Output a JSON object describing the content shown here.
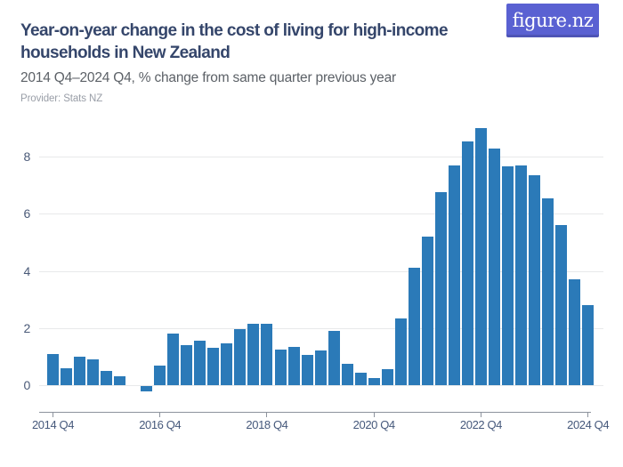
{
  "header": {
    "title_lines": [
      "Year-on-year change in the cost of living for high-income",
      "households in New Zealand"
    ],
    "subtitle": "2014 Q4–2024 Q4, % change from same quarter previous year",
    "provider": "Provider: Stats NZ",
    "logo_text": "figure.nz"
  },
  "colors": {
    "bar": "#2b7ab8",
    "title": "#35466b",
    "subtitle": "#5c6167",
    "provider": "#999ea7",
    "axis_labels": "#45587b",
    "gridline": "#e8e9ea",
    "axis_line": "#8d939d",
    "logo_background": "#5a61d2",
    "background": "#ffffff"
  },
  "chart_data": {
    "type": "bar",
    "title": "Year-on-year change in the cost of living for high-income households in New Zealand",
    "subtitle": "2014 Q4–2024 Q4, % change from same quarter previous year",
    "provider": "Provider: Stats NZ",
    "ylabel": "% change from same quarter previous year",
    "xlabel": "",
    "legend": false,
    "grid": true,
    "ylim": [
      -0.95,
      9.15
    ],
    "y_ticks": [
      0,
      2,
      4,
      6,
      8
    ],
    "x_tick_labels": [
      "2014 Q4",
      "2016 Q4",
      "2018 Q4",
      "2020 Q4",
      "2022 Q4",
      "2024 Q4"
    ],
    "x_tick_indices": [
      0,
      8,
      16,
      24,
      32,
      40
    ],
    "categories": [
      "2014 Q4",
      "2015 Q1",
      "2015 Q2",
      "2015 Q3",
      "2015 Q4",
      "2016 Q1",
      "2016 Q2",
      "2016 Q3",
      "2016 Q4",
      "2017 Q1",
      "2017 Q2",
      "2017 Q3",
      "2017 Q4",
      "2018 Q1",
      "2018 Q2",
      "2018 Q3",
      "2018 Q4",
      "2019 Q1",
      "2019 Q2",
      "2019 Q3",
      "2019 Q4",
      "2020 Q1",
      "2020 Q2",
      "2020 Q3",
      "2020 Q4",
      "2021 Q1",
      "2021 Q2",
      "2021 Q3",
      "2021 Q4",
      "2022 Q1",
      "2022 Q2",
      "2022 Q3",
      "2022 Q4",
      "2023 Q1",
      "2023 Q2",
      "2023 Q3",
      "2023 Q4",
      "2024 Q1",
      "2024 Q2",
      "2024 Q3",
      "2024 Q4"
    ],
    "values": [
      1.1,
      0.6,
      1.0,
      0.9,
      0.5,
      0.3,
      0.0,
      -0.2,
      0.7,
      1.8,
      1.4,
      1.55,
      1.3,
      1.45,
      1.95,
      2.15,
      2.15,
      1.25,
      1.35,
      1.05,
      1.2,
      1.9,
      0.75,
      0.45,
      0.25,
      0.55,
      2.35,
      4.1,
      5.2,
      6.75,
      7.7,
      8.55,
      9.0,
      8.3,
      7.65,
      7.7,
      7.35,
      6.55,
      5.6,
      3.7,
      2.8
    ]
  }
}
